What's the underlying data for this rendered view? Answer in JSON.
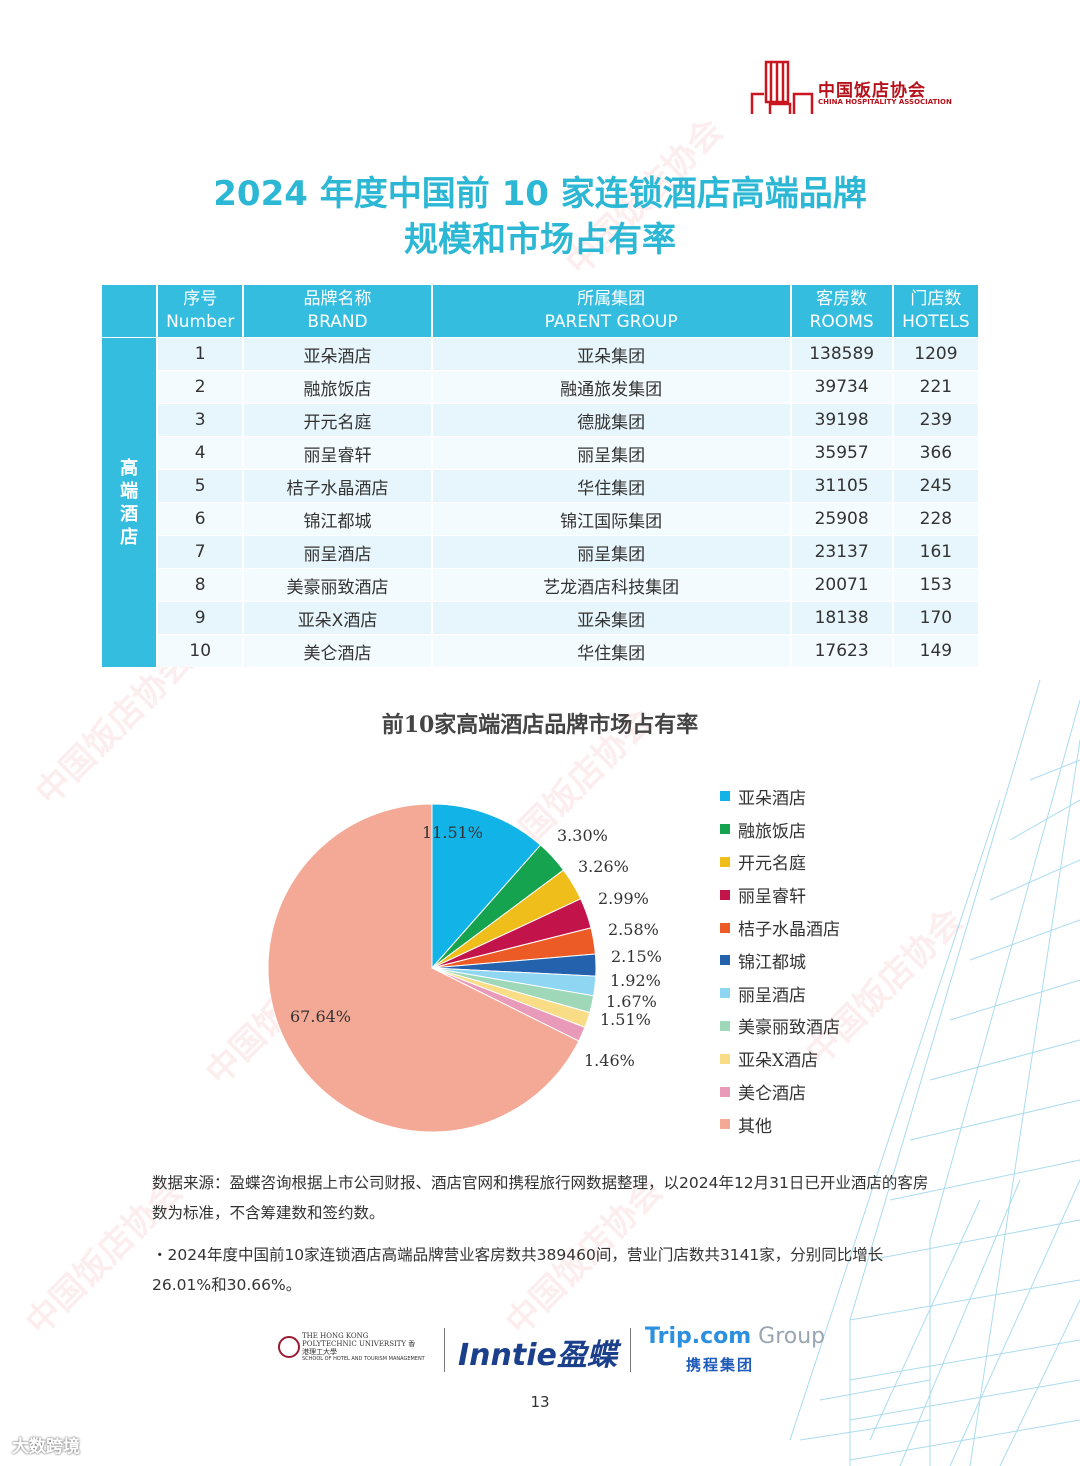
{
  "header": {
    "logo_cn": "中国饭店协会",
    "logo_en": "CHINA HOSPITALITY ASSOCIATION",
    "title_line1": "2024 年度中国前 10 家连锁酒店高端品牌",
    "title_line2": "规模和市场占有率"
  },
  "watermark": "中国饭店协会",
  "table": {
    "side_label": "高端酒店",
    "headers": [
      {
        "cn": "序号",
        "en": "Number"
      },
      {
        "cn": "品牌名称",
        "en": "BRAND"
      },
      {
        "cn": "所属集团",
        "en": "PARENT GROUP"
      },
      {
        "cn": "客房数",
        "en": "ROOMS"
      },
      {
        "cn": "门店数",
        "en": "HOTELS"
      }
    ],
    "rows": [
      [
        "1",
        "亚朵酒店",
        "亚朵集团",
        "138589",
        "1209"
      ],
      [
        "2",
        "融旅饭店",
        "融通旅发集团",
        "39734",
        "221"
      ],
      [
        "3",
        "开元名庭",
        "德胧集团",
        "39198",
        "239"
      ],
      [
        "4",
        "丽呈睿轩",
        "丽呈集团",
        "35957",
        "366"
      ],
      [
        "5",
        "桔子水晶酒店",
        "华住集团",
        "31105",
        "245"
      ],
      [
        "6",
        "锦江都城",
        "锦江国际集团",
        "25908",
        "228"
      ],
      [
        "7",
        "丽呈酒店",
        "丽呈集团",
        "23137",
        "161"
      ],
      [
        "8",
        "美豪丽致酒店",
        "艺龙酒店科技集团",
        "20071",
        "153"
      ],
      [
        "9",
        "亚朵X酒店",
        "亚朵集团",
        "18138",
        "170"
      ],
      [
        "10",
        "美仑酒店",
        "华住集团",
        "17623",
        "149"
      ]
    ]
  },
  "chart_data": {
    "type": "pie",
    "title": "前10家高端酒店品牌市场占有率",
    "categories": [
      "亚朵酒店",
      "融旅饭店",
      "开元名庭",
      "丽呈睿轩",
      "桔子水晶酒店",
      "锦江都城",
      "丽呈酒店",
      "美豪丽致酒店",
      "亚朵X酒店",
      "美仑酒店",
      "其他"
    ],
    "values": [
      11.51,
      3.3,
      3.26,
      2.99,
      2.58,
      2.15,
      1.92,
      1.67,
      1.51,
      1.46,
      67.64
    ],
    "labels": [
      "11.51%",
      "3.30%",
      "3.26%",
      "2.99%",
      "2.58%",
      "2.15%",
      "1.92%",
      "1.67%",
      "1.51%",
      "1.46%",
      "67.64%"
    ],
    "colors": [
      "#12b3e6",
      "#16a34f",
      "#f0be1a",
      "#c3134b",
      "#ec5a25",
      "#2562ad",
      "#8fd6f3",
      "#9fd8b9",
      "#f8dc86",
      "#e99ab8",
      "#f4a996"
    ],
    "legend_position": "right"
  },
  "notes": {
    "source": "数据来源：盈蝶咨询根据上市公司财报、酒店官网和携程旅行网数据整理，以2024年12月31日已开业酒店的客房数为标准，不含筹建数和签约数。",
    "summary": "・2024年度中国前10家连锁酒店高端品牌营业客房数共389460间，营业门店数共3141家，分别同比增长26.01%和30.66%。"
  },
  "partners": {
    "polyu_name": "THE HONG KONG POLYTECHNIC UNIVERSITY 香港理工大學",
    "polyu_school": "SCHOOL OF HOTEL AND TOURISM MANAGEMENT",
    "inntie": "Inntie盈蝶",
    "trip_main": "Trip.com",
    "trip_group": " Group",
    "trip_cn": "携程集团"
  },
  "page_number": "13",
  "corner_mark": "大数跨境"
}
